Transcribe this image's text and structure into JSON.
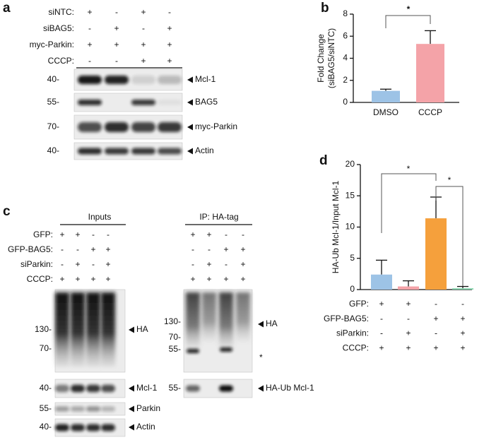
{
  "panel_a": {
    "label": "a",
    "conditions": [
      {
        "label": "siNTC:",
        "signs": [
          "+",
          "-",
          "+",
          "-"
        ]
      },
      {
        "label": "siBAG5:",
        "signs": [
          "-",
          "+",
          "-",
          "+"
        ]
      },
      {
        "label": "myc-Parkin:",
        "signs": [
          "+",
          "+",
          "+",
          "+"
        ]
      },
      {
        "label": "CCCP:",
        "signs": [
          "-",
          "-",
          "+",
          "+"
        ]
      }
    ],
    "blots": [
      {
        "mw": "40-",
        "label": "Mcl-1"
      },
      {
        "mw": "55-",
        "label": "BAG5"
      },
      {
        "mw": "70-",
        "label": "myc-Parkin"
      },
      {
        "mw": "40-",
        "label": "Actin"
      }
    ]
  },
  "panel_c": {
    "label": "c",
    "inputs_title": "Inputs",
    "ip_title": "IP: HA-tag",
    "conditions": [
      {
        "label": "GFP:",
        "inputs": [
          "+",
          "+",
          "-",
          "-"
        ],
        "ip": [
          "+",
          "+",
          "-",
          "-"
        ]
      },
      {
        "label": "GFP-BAG5:",
        "inputs": [
          "-",
          "-",
          "+",
          "+"
        ],
        "ip": [
          "-",
          "-",
          "+",
          "+"
        ]
      },
      {
        "label": "siParkin:",
        "inputs": [
          "-",
          "+",
          "-",
          "+"
        ],
        "ip": [
          "-",
          "+",
          "-",
          "+"
        ]
      },
      {
        "label": "CCCP:",
        "inputs": [
          "+",
          "+",
          "+",
          "+"
        ],
        "ip": [
          "+",
          "+",
          "+",
          "+"
        ]
      }
    ],
    "inputs_blots": [
      {
        "markers": [
          "130-",
          "70-"
        ],
        "label": "HA"
      },
      {
        "markers": [
          "40-"
        ],
        "label": "Mcl-1"
      },
      {
        "markers": [
          "55-"
        ],
        "label": "Parkin"
      },
      {
        "markers": [
          "40-"
        ],
        "label": "Actin"
      }
    ],
    "ip_blots": [
      {
        "markers": [
          "130-",
          "70-",
          "55-"
        ],
        "label": "HA",
        "note": "*"
      },
      {
        "markers": [
          "55-"
        ],
        "label": "HA-Ub Mcl-1"
      }
    ]
  },
  "chart_data": [
    {
      "type": "bar",
      "label": "b",
      "y_label": [
        "Fold Change",
        "(siBAG5/siNTC)"
      ],
      "categories": [
        "DMSO",
        "CCCP"
      ],
      "values": [
        1.05,
        5.3
      ],
      "errors": [
        0.15,
        1.2
      ],
      "colors": [
        "#9dc3e6",
        "#f4a3a8"
      ],
      "ylim": [
        0,
        8
      ],
      "yticks": [
        0,
        2,
        4,
        6,
        8
      ],
      "significance": [
        "*"
      ]
    },
    {
      "type": "bar",
      "label": "d",
      "y_label": [
        "HA-Ub Mcl-1/Input Mcl-1"
      ],
      "values": [
        2.4,
        0.5,
        11.4,
        0.2
      ],
      "errors": [
        2.3,
        0.9,
        3.4,
        0.3
      ],
      "colors": [
        "#9dc3e6",
        "#f4a3a8",
        "#f5a03c",
        "#7fd3a9"
      ],
      "ylim": [
        0,
        20
      ],
      "yticks": [
        0,
        5,
        10,
        15,
        20
      ],
      "significance": [
        "*",
        "*"
      ],
      "conditions": [
        {
          "label": "GFP:",
          "signs": [
            "+",
            "+",
            "-",
            "-"
          ]
        },
        {
          "label": "GFP-BAG5:",
          "signs": [
            "-",
            "-",
            "+",
            "+"
          ]
        },
        {
          "label": "siParkin:",
          "signs": [
            "-",
            "+",
            "-",
            "+"
          ]
        },
        {
          "label": "CCCP:",
          "signs": [
            "+",
            "+",
            "+",
            "+"
          ]
        }
      ]
    }
  ]
}
